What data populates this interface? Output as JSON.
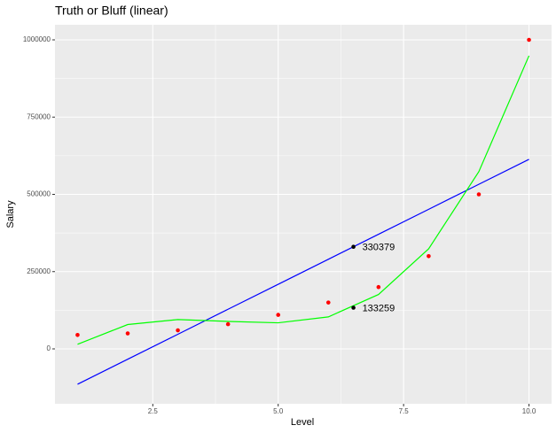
{
  "chart_data": {
    "type": "scatter",
    "title": "Truth or Bluff (linear)",
    "x_label": "Level",
    "y_label": "Salary",
    "x": [
      1,
      2,
      3,
      4,
      5,
      6,
      7,
      8,
      9,
      10
    ],
    "series": [
      {
        "color": "#ff0000",
        "values": [
          45000,
          50000,
          60000,
          80000,
          110000,
          150000,
          200000,
          300000,
          500000,
          1000000
        ]
      }
    ],
    "lines": [
      {
        "color": "#0000ff",
        "x": [
          1,
          2,
          3,
          4,
          5,
          6,
          7,
          8,
          9,
          10
        ],
        "values": [
          -114455,
          -33576,
          47303,
          128182,
          209061,
          289939,
          370818,
          451697,
          532576,
          613455
        ]
      },
      {
        "color": "#00ff00",
        "x": [
          1,
          2,
          3,
          4,
          5,
          6,
          7,
          8,
          9,
          10
        ],
        "values": [
          14902,
          78759,
          94907,
          88906,
          84317,
          103500,
          175914,
          323922,
          573482,
          948560
        ]
      }
    ],
    "annotations": [
      {
        "x": 6.5,
        "value": 330379
      },
      {
        "x": 6.5,
        "value": 133259
      }
    ],
    "annotation_color": "#000000",
    "xlim": [
      0.55,
      10.45
    ],
    "ylim": [
      -177650,
      1048700
    ],
    "xticks": [
      2.5,
      {
        "value": 5,
        "label": "5.0"
      },
      7.5,
      {
        "value": 10,
        "label": "10.0"
      }
    ],
    "yticks": [
      0,
      250000,
      500000,
      750000,
      1000000
    ],
    "grid": true
  }
}
